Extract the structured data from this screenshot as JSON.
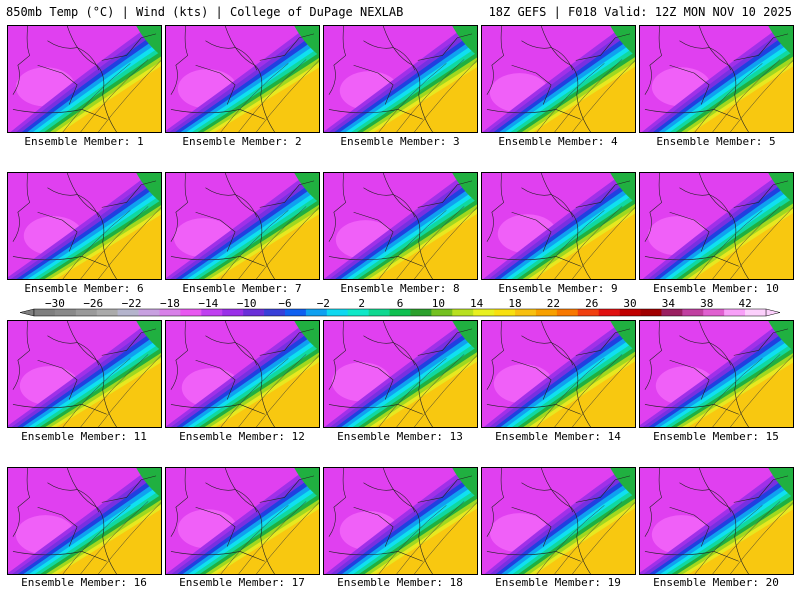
{
  "header": {
    "left": "850mb Temp (°C) | Wind (kts) | College of DuPage NEXLAB",
    "right": "18Z GEFS | F018 Valid: 12Z MON NOV 10 2025"
  },
  "label_prefix": "Ensemble Member:",
  "members": [
    1,
    2,
    3,
    4,
    5,
    6,
    7,
    8,
    9,
    10,
    11,
    12,
    13,
    14,
    15,
    16,
    17,
    18,
    19,
    20
  ],
  "colorbar": {
    "ticks": [
      -30,
      -26,
      -22,
      -18,
      -14,
      -10,
      -6,
      -2,
      2,
      6,
      10,
      14,
      18,
      22,
      26,
      30,
      34,
      38,
      42
    ],
    "colors": [
      "#7f7f7f",
      "#8a8a8a",
      "#9a9a9a",
      "#aaaaaa",
      "#b4b4cc",
      "#c8a0e0",
      "#d880e8",
      "#e858f0",
      "#c040f0",
      "#9a30e8",
      "#6a30d8",
      "#3840d8",
      "#1060f0",
      "#10a0f0",
      "#10d8f0",
      "#10e8c8",
      "#10d890",
      "#10c050",
      "#2ca02c",
      "#74c020",
      "#b8e020",
      "#e8f020",
      "#f8e010",
      "#f8c010",
      "#f8a000",
      "#f87800",
      "#f04010",
      "#e01010",
      "#c00000",
      "#a00000",
      "#9a2060",
      "#c040a0",
      "#e060d0",
      "#f8a0f8",
      "#fcd0fc"
    ]
  },
  "map_colors": {
    "magenta_light": "#f060f8",
    "magenta": "#e040f0",
    "purple": "#a030e8",
    "violet": "#7830e0",
    "blue": "#2040e0",
    "sky": "#10a0f0",
    "cyan": "#10e0f0",
    "teal": "#10d8a0",
    "green": "#20b040",
    "lime": "#a0d820",
    "yellow": "#e8e820",
    "gold": "#f8c810"
  }
}
